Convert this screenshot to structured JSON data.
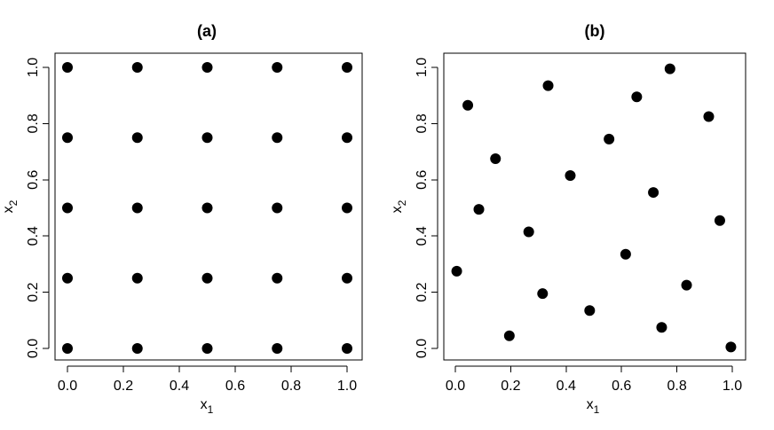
{
  "chart_data": [
    {
      "type": "scatter",
      "title": "(a)",
      "xlabel": {
        "base": "x",
        "sub": "1"
      },
      "ylabel": {
        "base": "x",
        "sub": "2"
      },
      "xlim": [
        0,
        1
      ],
      "ylim": [
        0,
        1
      ],
      "xticks": [
        "0.0",
        "0.2",
        "0.4",
        "0.6",
        "0.8",
        "1.0"
      ],
      "yticks": [
        "0.0",
        "0.2",
        "0.4",
        "0.6",
        "0.8",
        "1.0"
      ],
      "grid": false,
      "series": [
        {
          "points": [
            [
              0.0,
              1.0
            ],
            [
              0.25,
              1.0
            ],
            [
              0.5,
              1.0
            ],
            [
              0.75,
              1.0
            ],
            [
              1.0,
              1.0
            ],
            [
              0.0,
              0.75
            ],
            [
              0.25,
              0.75
            ],
            [
              0.5,
              0.75
            ],
            [
              0.75,
              0.75
            ],
            [
              1.0,
              0.75
            ],
            [
              0.0,
              0.5
            ],
            [
              0.25,
              0.5
            ],
            [
              0.5,
              0.5
            ],
            [
              0.75,
              0.5
            ],
            [
              1.0,
              0.5
            ],
            [
              0.0,
              0.25
            ],
            [
              0.25,
              0.25
            ],
            [
              0.5,
              0.25
            ],
            [
              0.75,
              0.25
            ],
            [
              1.0,
              0.25
            ],
            [
              0.0,
              0.0
            ],
            [
              0.25,
              0.0
            ],
            [
              0.5,
              0.0
            ],
            [
              0.75,
              0.0
            ],
            [
              1.0,
              0.0
            ]
          ]
        }
      ]
    },
    {
      "type": "scatter",
      "title": "(b)",
      "xlabel": {
        "base": "x",
        "sub": "1"
      },
      "ylabel": {
        "base": "x",
        "sub": "2"
      },
      "xlim": [
        0,
        1
      ],
      "ylim": [
        0,
        1
      ],
      "xticks": [
        "0.0",
        "0.2",
        "0.4",
        "0.6",
        "0.8",
        "1.0"
      ],
      "yticks": [
        "0.0",
        "0.2",
        "0.4",
        "0.6",
        "0.8",
        "1.0"
      ],
      "grid": false,
      "series": [
        {
          "points": [
            [
              0.775,
              0.995
            ],
            [
              0.335,
              0.935
            ],
            [
              0.655,
              0.895
            ],
            [
              0.045,
              0.865
            ],
            [
              0.915,
              0.825
            ],
            [
              0.555,
              0.745
            ],
            [
              0.145,
              0.675
            ],
            [
              0.415,
              0.615
            ],
            [
              0.715,
              0.555
            ],
            [
              0.085,
              0.495
            ],
            [
              0.955,
              0.455
            ],
            [
              0.265,
              0.415
            ],
            [
              0.615,
              0.335
            ],
            [
              0.005,
              0.275
            ],
            [
              0.835,
              0.225
            ],
            [
              0.315,
              0.195
            ],
            [
              0.485,
              0.135
            ],
            [
              0.745,
              0.075
            ],
            [
              0.195,
              0.045
            ],
            [
              0.995,
              0.005
            ]
          ]
        }
      ]
    }
  ]
}
